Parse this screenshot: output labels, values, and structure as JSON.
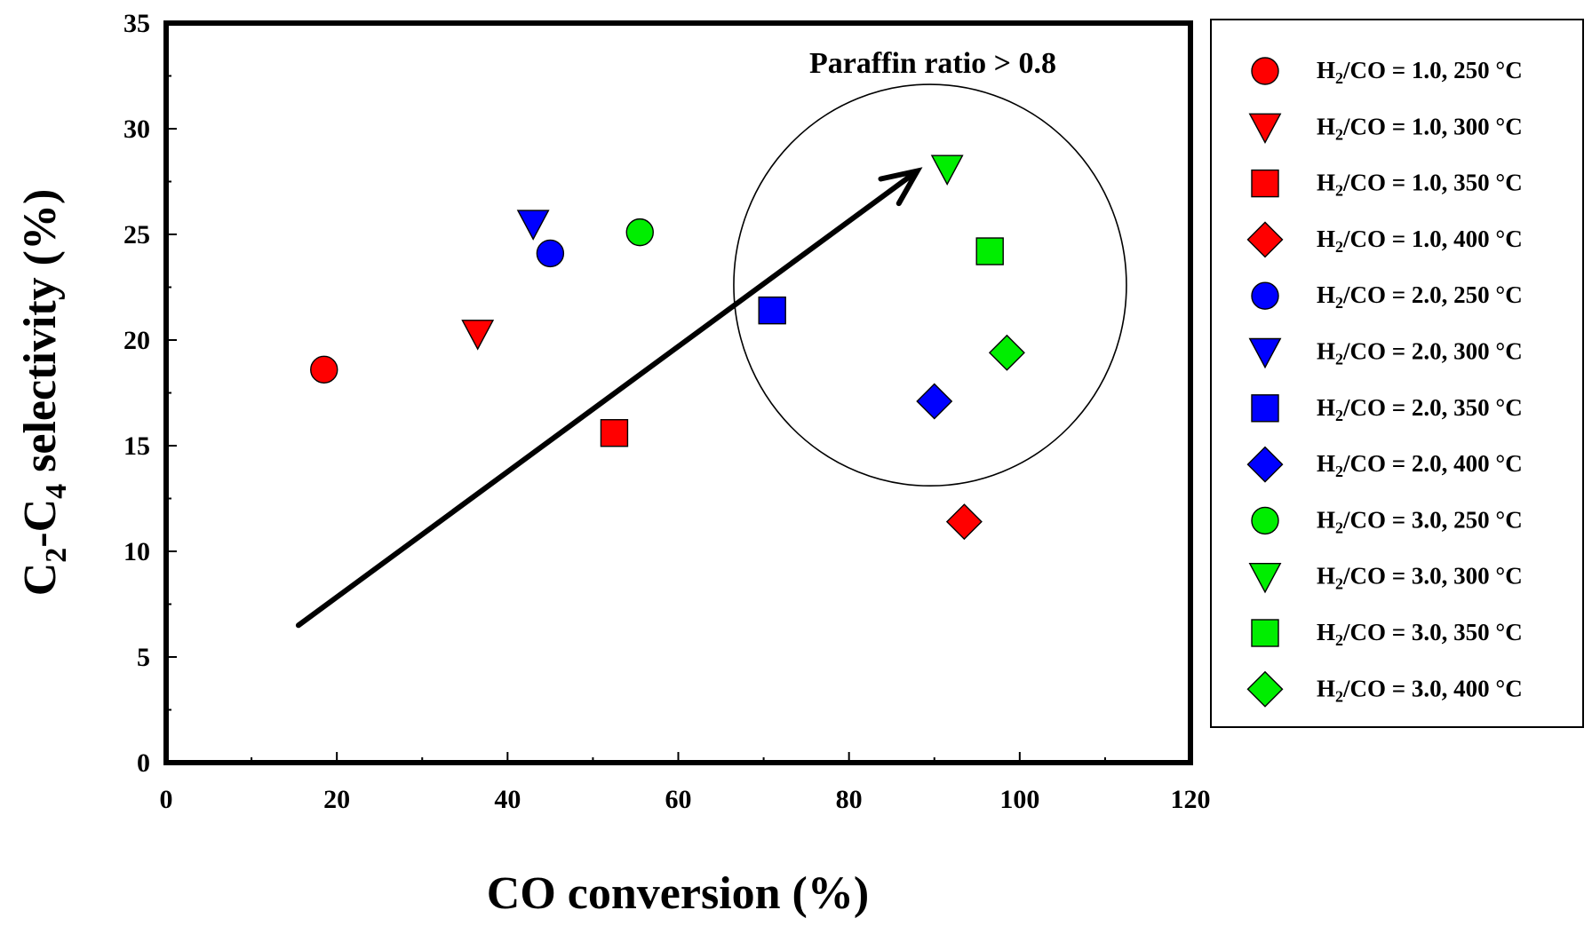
{
  "chart_data": {
    "type": "scatter",
    "title": "",
    "xlabel": "CO conversion (%)",
    "ylabel": {
      "main": "C",
      "sub1": "2",
      "mid": "-C",
      "sub2": "4",
      "rest": " selectivity (%)"
    },
    "xlim": [
      0,
      120
    ],
    "ylim": [
      0,
      35
    ],
    "xticks": [
      0,
      20,
      40,
      60,
      80,
      100,
      120
    ],
    "yticks": [
      0,
      5,
      10,
      15,
      20,
      25,
      30,
      35
    ],
    "grid": false,
    "legend_position": "right, outside plot",
    "annotation": "Paraffin ratio > 0.8",
    "arrow": {
      "from": [
        15.5,
        6.5
      ],
      "to": [
        88,
        28
      ]
    },
    "highlight_circle": {
      "center": [
        89.5,
        22.6
      ],
      "radius_x": 23,
      "radius_y": 9.5
    },
    "colors": {
      "1.0": "#ff0000",
      "2.0": "#0000ff",
      "3.0": "#00ee00"
    },
    "series": [
      {
        "name": "H2/CO = 1.0, 250 °C",
        "ratio": "1.0",
        "temp": "250 °C",
        "marker": "circle",
        "color": "#ff0000",
        "x": 18.5,
        "y": 18.6
      },
      {
        "name": "H2/CO = 1.0, 300 °C",
        "ratio": "1.0",
        "temp": "300 °C",
        "marker": "triangle-down",
        "color": "#ff0000",
        "x": 36.5,
        "y": 20.3
      },
      {
        "name": "H2/CO = 1.0, 350 °C",
        "ratio": "1.0",
        "temp": "350 °C",
        "marker": "square",
        "color": "#ff0000",
        "x": 52.5,
        "y": 15.6
      },
      {
        "name": "H2/CO = 1.0, 400 °C",
        "ratio": "1.0",
        "temp": "400 °C",
        "marker": "diamond",
        "color": "#ff0000",
        "x": 93.5,
        "y": 11.4
      },
      {
        "name": "H2/CO = 2.0, 250 °C",
        "ratio": "2.0",
        "temp": "250 °C",
        "marker": "circle",
        "color": "#0000ff",
        "x": 45,
        "y": 24.1
      },
      {
        "name": "H2/CO = 2.0, 300 °C",
        "ratio": "2.0",
        "temp": "300 °C",
        "marker": "triangle-down",
        "color": "#0000ff",
        "x": 43,
        "y": 25.5
      },
      {
        "name": "H2/CO = 2.0, 350 °C",
        "ratio": "2.0",
        "temp": "350 °C",
        "marker": "square",
        "color": "#0000ff",
        "x": 71,
        "y": 21.4
      },
      {
        "name": "H2/CO = 2.0, 400 °C",
        "ratio": "2.0",
        "temp": "400 °C",
        "marker": "diamond",
        "color": "#0000ff",
        "x": 90,
        "y": 17.1
      },
      {
        "name": "H2/CO = 3.0, 250 °C",
        "ratio": "3.0",
        "temp": "250 °C",
        "marker": "circle",
        "color": "#00ee00",
        "x": 55.5,
        "y": 25.1
      },
      {
        "name": "H2/CO = 3.0, 300 °C",
        "ratio": "3.0",
        "temp": "300 °C",
        "marker": "triangle-down",
        "color": "#00ee00",
        "x": 91.5,
        "y": 28.1
      },
      {
        "name": "H2/CO = 3.0, 350 °C",
        "ratio": "3.0",
        "temp": "350 °C",
        "marker": "square",
        "color": "#00ee00",
        "x": 96.5,
        "y": 24.2
      },
      {
        "name": "H2/CO = 3.0, 400 °C",
        "ratio": "3.0",
        "temp": "400 °C",
        "marker": "diamond",
        "color": "#00ee00",
        "x": 98.5,
        "y": 19.4
      }
    ]
  }
}
